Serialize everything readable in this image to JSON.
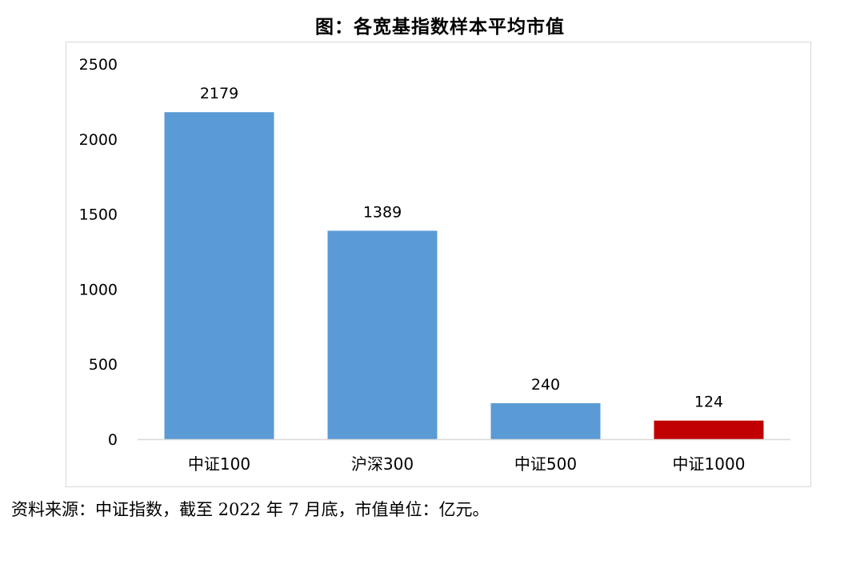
{
  "title": "图：各宽基指数样本平均市值",
  "source_note": "资料来源：中证指数，截至 2022 年 7 月底，市值单位：亿元。",
  "colors": {
    "bar_default": "#5b9bd5",
    "bar_highlight": "#c00000",
    "axis": "#d9d9d9"
  },
  "chart_data": {
    "type": "bar",
    "categories": [
      "中证100",
      "沪深300",
      "中证500",
      "中证1000"
    ],
    "values": [
      2179,
      1389,
      240,
      124
    ],
    "data_labels": [
      "2179",
      "1389",
      "240",
      "124"
    ],
    "highlight_index": 3,
    "ylim": [
      0,
      2500
    ],
    "yticks": [
      0,
      500,
      1000,
      1500,
      2000,
      2500
    ],
    "ytick_labels": [
      "0",
      "500",
      "1000",
      "1500",
      "2000",
      "2500"
    ],
    "grid": false,
    "legend": "none",
    "title": "图：各宽基指数样本平均市值"
  }
}
